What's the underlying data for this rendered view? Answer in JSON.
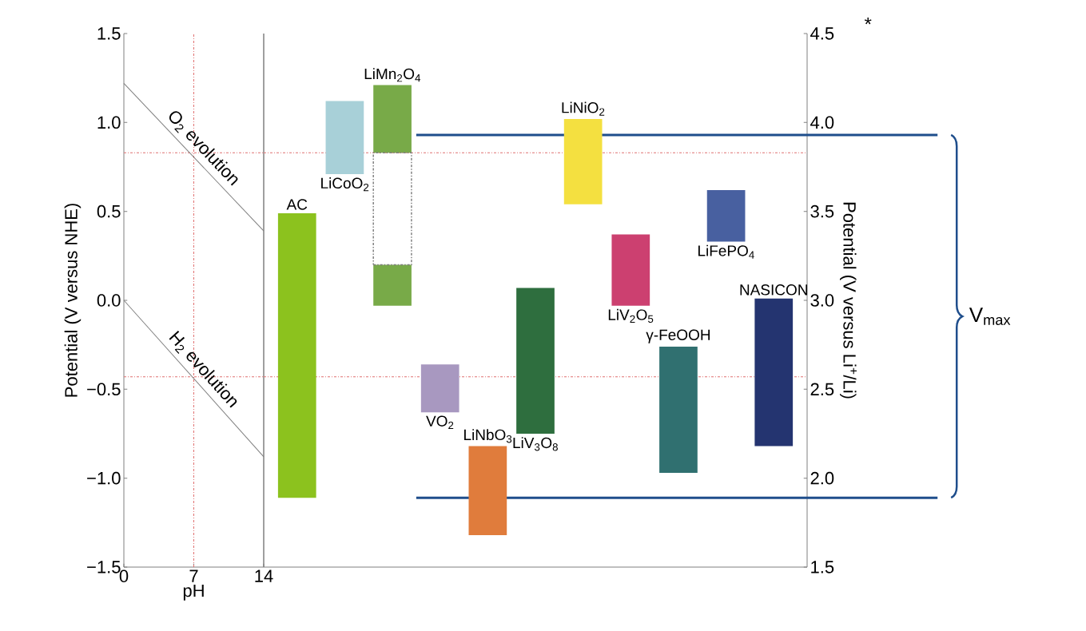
{
  "chart_data": [
    {
      "type": "line",
      "xlabel": "pH",
      "ylabel": "Potential (V versus NHE)",
      "xlim": [
        0,
        14
      ],
      "xticks": [
        0,
        7,
        14
      ],
      "ylim": [
        -1.5,
        1.5
      ],
      "yticks": [
        {
          "value": -1.5,
          "label": "−1.5"
        },
        {
          "value": -1.0,
          "label": "−1.0"
        },
        {
          "value": -0.5,
          "label": "−0.5"
        },
        {
          "value": 0,
          "label": "0.0"
        },
        {
          "value": 0.5,
          "label": "0.5"
        },
        {
          "value": 1.0,
          "label": "1.0"
        },
        {
          "value": 1.5,
          "label": "1.5"
        }
      ],
      "series": [
        {
          "name": "O$_{2}$ evolution",
          "color": "#808080",
          "values": [
            1.22,
            0.39
          ]
        },
        {
          "name": "H$_{2}$ evolution",
          "color": "#808080",
          "values": [
            0,
            -0.88
          ]
        }
      ],
      "x": [
        0,
        14
      ],
      "ref_lines": [
        {
          "axis": "x",
          "value": 7,
          "color": "#e07070",
          "line_style": "dashed"
        },
        {
          "axis": "y",
          "value": 0.83,
          "color": "#e07070",
          "line_style": "dashed"
        },
        {
          "axis": "y",
          "value": -0.43,
          "color": "#e07070",
          "line_style": "dashed"
        }
      ]
    },
    {
      "type": "bar",
      "ylabel": "Potential (V versus Li$^{+}$/Li)",
      "ylim": [
        1.5,
        4.5
      ],
      "yticks": [
        {
          "value": 1.5,
          "label": "1.5"
        },
        {
          "value": 2.0,
          "label": "2.0"
        },
        {
          "value": 2.5,
          "label": "2.5"
        },
        {
          "value": 3.0,
          "label": "3.0"
        },
        {
          "value": 3.5,
          "label": "3.5"
        },
        {
          "value": 4.0,
          "label": "4.0"
        },
        {
          "value": 4.5,
          "label": "4.5"
        }
      ],
      "tick_labels": "y",
      "categories": [
        "AC",
        "LiCoO$_{2}$",
        "LiMn$_{2}$O$_{4}$",
        "VO$_{2}$",
        "LiNbO$_{3}$",
        "LiV$_{3}$O$_{8}$",
        "LiNiO$_{2}$",
        "LiV$_{2}$O$_{5}$",
        "γ-FeOOH",
        "LiFePO$_{4}$",
        "NASICON"
      ],
      "series": [
        {
          "values": [
            1.6,
            0.41,
            0.38,
            0.27,
            0.5,
            0.82,
            0.48,
            0.4,
            0.71,
            0.29,
            0.83
          ],
          "base": [
            1.89,
            3.71,
            3.83,
            2.37,
            1.68,
            2.25,
            3.54,
            2.97,
            2.03,
            3.33,
            2.18
          ],
          "colors": [
            "#8cc21e",
            "#a8d0d8",
            "#78aa48",
            "#a898c0",
            "#e07c3c",
            "#2e6e3e",
            "#f4e040",
            "#cc4070",
            "#307070",
            "#4860a0",
            "#243470"
          ]
        },
        {
          "values": [
            null,
            null,
            0.23,
            null,
            null,
            null,
            null,
            null,
            null,
            null,
            null
          ],
          "base": [
            null,
            null,
            2.97,
            null,
            null,
            null,
            null,
            null,
            null,
            null,
            null
          ],
          "color": "#78aa48"
        },
        {
          "values": [
            null,
            null,
            0.63,
            null,
            null,
            null,
            null,
            null,
            null,
            null,
            null
          ],
          "base": [
            null,
            null,
            3.2,
            null,
            null,
            null,
            null,
            null,
            null,
            null,
            null
          ],
          "color": "#808080",
          "line_style": "dashed"
        }
      ],
      "ref_lines": [
        {
          "axis": "y",
          "value": 3.83,
          "color": "#e07070",
          "line_style": "dashed"
        },
        {
          "axis": "y",
          "value": 2.57,
          "color": "#e07070",
          "line_style": "dashed"
        },
        {
          "axis": "y",
          "value": 3.93,
          "color": "#1f4e8c",
          "line_style": "solid"
        },
        {
          "axis": "y",
          "value": 1.89,
          "color": "#1f4e8c",
          "line_style": "solid"
        }
      ],
      "annotations": [
        "*",
        "V$_{max}$"
      ]
    }
  ]
}
